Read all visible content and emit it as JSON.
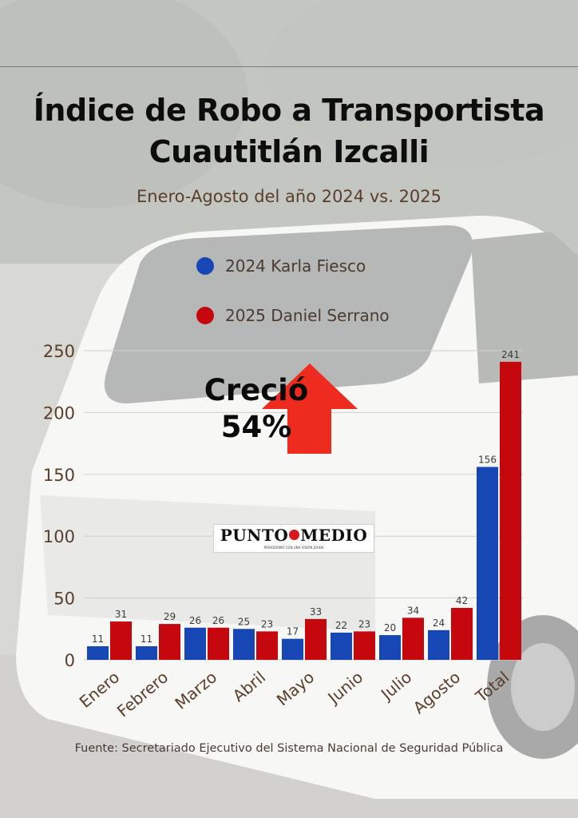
{
  "header": {
    "title_line1": "Índice de Robo a Transportista",
    "title_line2": "Cuautitlán Izcalli",
    "subtitle": "Enero-Agosto del año 2024 vs. 2025"
  },
  "annotation": {
    "line1": "Creció",
    "line2": "54%",
    "arrow_color": "#ee2b1f"
  },
  "logo": {
    "left": "PUNTO",
    "right": "MEDIO",
    "tagline": "PERIODISMO CON UNA VISIÓN JOVEN"
  },
  "source": "Fuente: Secretariado Ejecutivo del Sistema Nacional de Seguridad Pública",
  "chart_data": {
    "type": "bar",
    "categories": [
      "Enero",
      "Febrero",
      "Marzo",
      "Abril",
      "Mayo",
      "Junio",
      "Julio",
      "Agosto",
      "Total"
    ],
    "series": [
      {
        "name": "2024 Karla Fiesco",
        "color": "#1746b5",
        "values": [
          11,
          11,
          26,
          25,
          17,
          22,
          20,
          24,
          156
        ]
      },
      {
        "name": "2025 Daniel Serrano",
        "color": "#c4080e",
        "values": [
          31,
          29,
          26,
          23,
          33,
          23,
          34,
          42,
          241
        ]
      }
    ],
    "yticks": [
      0,
      50,
      100,
      150,
      200,
      250
    ],
    "ylim": [
      0,
      250
    ],
    "grid": true,
    "data_labels": true
  }
}
